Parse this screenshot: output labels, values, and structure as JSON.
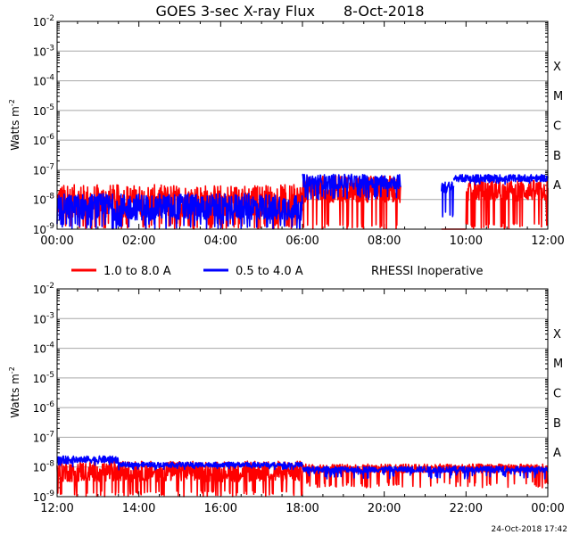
{
  "chart_data": [
    {
      "type": "line",
      "title": "GOES 3-sec X-ray Flux",
      "date": "8-Oct-2018",
      "ylabel": "Watts m",
      "ylabel_exp": "-2",
      "yscale": "log",
      "ylim_exp": [
        -9,
        -2
      ],
      "ytick_exponents": [
        "-2",
        "-3",
        "-4",
        "-5",
        "-6",
        "-7",
        "-8",
        "-9"
      ],
      "class_labels": [
        {
          "label": "X",
          "exp": -3.5
        },
        {
          "label": "M",
          "exp": -4.5
        },
        {
          "label": "C",
          "exp": -5.5
        },
        {
          "label": "B",
          "exp": -6.5
        },
        {
          "label": "A",
          "exp": -7.5
        }
      ],
      "xlim_hours": [
        0,
        12
      ],
      "xtick_labels": [
        "00:00",
        "02:00",
        "04:00",
        "06:00",
        "08:00",
        "10:00",
        "12:00"
      ],
      "series": [
        {
          "name": "1.0 to 8.0 A",
          "color": "#ff0000",
          "segments": [
            {
              "t": [
                0,
                6
              ],
              "base": -8.05,
              "spread": 0.55,
              "low": -9.0
            },
            {
              "t": [
                6.0,
                8.4
              ],
              "base": -7.65,
              "spread": 0.45,
              "low": -9.0
            },
            {
              "t": [
                9.4,
                10.0
              ],
              "base": -9.0,
              "spread": 0.0,
              "low": -9.0
            },
            {
              "t": [
                10.0,
                12.0
              ],
              "base": -7.7,
              "spread": 0.35,
              "low": -9.0
            }
          ]
        },
        {
          "name": "0.5 to 4.0 A",
          "color": "#0000ff",
          "segments": [
            {
              "t": [
                0,
                6
              ],
              "base": -8.25,
              "spread": 0.45,
              "low": -9.0
            },
            {
              "t": [
                6.0,
                8.4
              ],
              "base": -7.4,
              "spread": 0.25,
              "low": -8.0
            },
            {
              "t": [
                9.4,
                9.7
              ],
              "base": -7.6,
              "spread": 0.2,
              "low": -8.6
            },
            {
              "t": [
                9.7,
                12.0
              ],
              "base": -7.28,
              "spread": 0.12,
              "low": -7.5
            }
          ]
        }
      ]
    },
    {
      "type": "line",
      "yscale": "log",
      "ylabel": "Watts m",
      "ylabel_exp": "-2",
      "ylim_exp": [
        -9,
        -2
      ],
      "ytick_exponents": [
        "-2",
        "-3",
        "-4",
        "-5",
        "-6",
        "-7",
        "-8",
        "-9"
      ],
      "class_labels": [
        {
          "label": "X",
          "exp": -3.5
        },
        {
          "label": "M",
          "exp": -4.5
        },
        {
          "label": "C",
          "exp": -5.5
        },
        {
          "label": "B",
          "exp": -6.5
        },
        {
          "label": "A",
          "exp": -7.5
        }
      ],
      "xlim_hours": [
        12,
        24
      ],
      "xtick_labels": [
        "12:00",
        "14:00",
        "16:00",
        "18:00",
        "20:00",
        "22:00",
        "00:00"
      ],
      "series": [
        {
          "name": "1.0 to 8.0 A",
          "color": "#ff0000",
          "segments": [
            {
              "t": [
                12,
                18
              ],
              "base": -8.15,
              "spread": 0.35,
              "low": -9.0
            },
            {
              "t": [
                18,
                24
              ],
              "base": -8.05,
              "spread": 0.15,
              "low": -8.7
            }
          ]
        },
        {
          "name": "0.5 to 4.0 A",
          "color": "#0000ff",
          "segments": [
            {
              "t": [
                12,
                13.5
              ],
              "base": -7.75,
              "spread": 0.12,
              "low": -8.0
            },
            {
              "t": [
                13.5,
                18
              ],
              "base": -7.92,
              "spread": 0.08,
              "low": -8.1
            },
            {
              "t": [
                18,
                24
              ],
              "base": -8.08,
              "spread": 0.1,
              "low": -8.4
            }
          ]
        }
      ]
    }
  ],
  "legend": [
    {
      "label": "1.0 to 8.0 A",
      "color": "#ff0000"
    },
    {
      "label": "0.5 to 4.0 A",
      "color": "#0000ff"
    }
  ],
  "note": "RHESSI Inoperative",
  "footer_timestamp": "24-Oct-2018 17:42"
}
